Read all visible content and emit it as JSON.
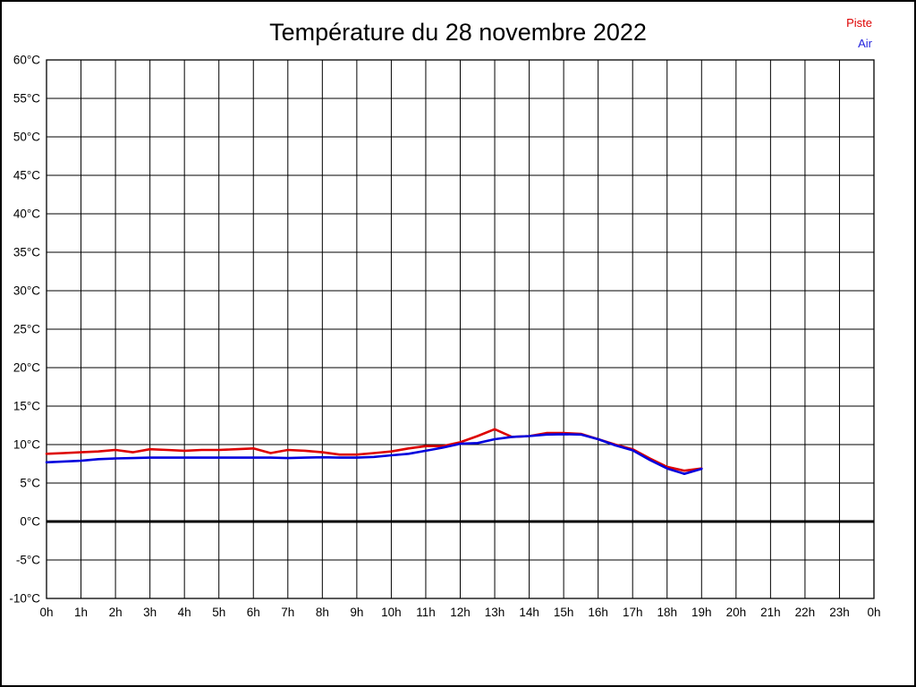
{
  "title": "Température du 28 novembre 2022",
  "legend": {
    "piste": {
      "label": "Piste",
      "color": "#dd0000"
    },
    "air": {
      "label": "Air",
      "color": "#2222dd"
    }
  },
  "chart_data": {
    "type": "line",
    "title": "Température du 28 novembre 2022",
    "xlabel": "",
    "ylabel": "",
    "grid": true,
    "legend_position": "top-right",
    "xlim": [
      0,
      24
    ],
    "ylim": [
      -10,
      60
    ],
    "x_ticks": [
      "0h",
      "1h",
      "2h",
      "3h",
      "4h",
      "5h",
      "6h",
      "7h",
      "8h",
      "9h",
      "10h",
      "11h",
      "12h",
      "13h",
      "14h",
      "15h",
      "16h",
      "17h",
      "18h",
      "19h",
      "20h",
      "21h",
      "22h",
      "23h",
      "0h"
    ],
    "x_tick_hours": [
      0,
      1,
      2,
      3,
      4,
      5,
      6,
      7,
      8,
      9,
      10,
      11,
      12,
      13,
      14,
      15,
      16,
      17,
      18,
      19,
      20,
      21,
      22,
      23,
      24
    ],
    "y_ticks": [
      "60°C",
      "55°C",
      "50°C",
      "45°C",
      "40°C",
      "35°C",
      "30°C",
      "25°C",
      "20°C",
      "15°C",
      "10°C",
      "5°C",
      "0°C",
      "-5°C",
      "-10°C"
    ],
    "y_tick_values": [
      60,
      55,
      50,
      45,
      40,
      35,
      30,
      25,
      20,
      15,
      10,
      5,
      0,
      -5,
      -10
    ],
    "zero_line": {
      "value": 0,
      "color": "#000000",
      "width": 3
    },
    "x": [
      0,
      0.5,
      1,
      1.5,
      2,
      2.5,
      3,
      3.5,
      4,
      4.5,
      5,
      5.5,
      6,
      6.5,
      7,
      7.5,
      8,
      8.5,
      9,
      9.5,
      10,
      10.5,
      11,
      11.5,
      12,
      12.5,
      13,
      13.5,
      14,
      14.5,
      15,
      15.5,
      16,
      16.5,
      17,
      17.5,
      18,
      18.5,
      19
    ],
    "series": [
      {
        "name": "Piste",
        "color": "#dd0000",
        "values": [
          8.8,
          8.9,
          9.0,
          9.1,
          9.3,
          9.0,
          9.4,
          9.3,
          9.2,
          9.3,
          9.3,
          9.4,
          9.5,
          8.9,
          9.3,
          9.2,
          9.0,
          8.7,
          8.7,
          8.9,
          9.1,
          9.5,
          9.8,
          9.8,
          10.3,
          11.1,
          12.0,
          11.0,
          11.1,
          11.5,
          11.5,
          11.4,
          10.7,
          10.0,
          9.4,
          8.2,
          7.1,
          6.6,
          6.9
        ]
      },
      {
        "name": "Air",
        "color": "#0000dd",
        "values": [
          7.7,
          7.8,
          7.9,
          8.1,
          8.2,
          8.25,
          8.3,
          8.3,
          8.3,
          8.3,
          8.3,
          8.3,
          8.3,
          8.3,
          8.25,
          8.3,
          8.35,
          8.3,
          8.3,
          8.4,
          8.6,
          8.8,
          9.2,
          9.6,
          10.1,
          10.2,
          10.7,
          11.0,
          11.1,
          11.3,
          11.35,
          11.3,
          10.7,
          9.9,
          9.25,
          8.0,
          6.9,
          6.2,
          6.85
        ]
      }
    ]
  }
}
